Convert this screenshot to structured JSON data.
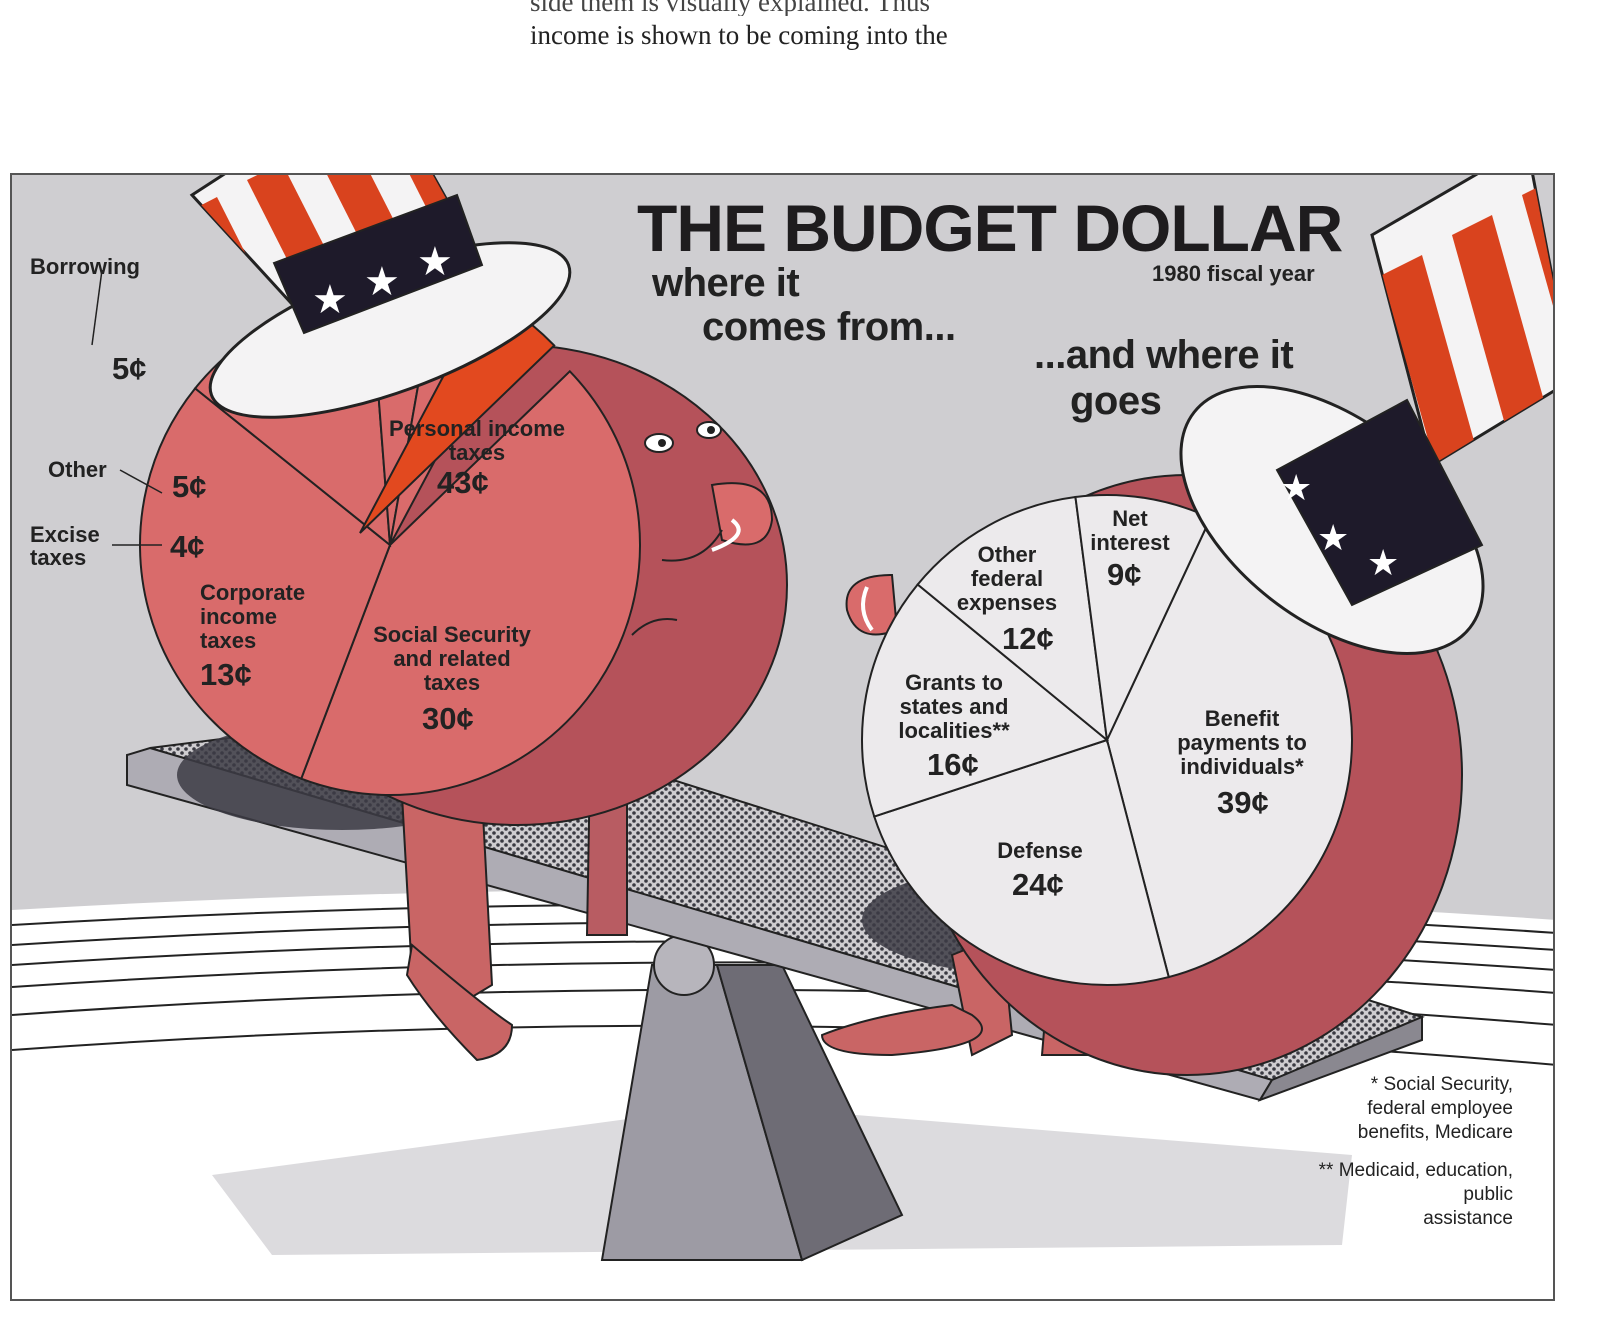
{
  "page_text": {
    "line_partial": "side them is visually explained. Thus",
    "line_full": "income is shown to be coming into the"
  },
  "colors": {
    "income_pie": "#d96b6b",
    "income_pie_dark": "#b5525a",
    "borrowing": "#e2491f",
    "outlay_pie": "#eceaec",
    "hat_red": "#d9431e",
    "hat_navy": "#1e1a2a",
    "background": "#cfced1"
  },
  "chart_data": [
    {
      "type": "pie",
      "title": "THE BUDGET DOLLAR",
      "subtitle": "1980 fiscal year",
      "heading": "where it comes from...",
      "heading_lines": [
        "where it",
        "comes from..."
      ],
      "unit": "¢",
      "slices": [
        {
          "label": "Personal income taxes",
          "label_lines": [
            "Personal income",
            "taxes"
          ],
          "value": 43,
          "value_text": "43¢"
        },
        {
          "label": "Social Security and related taxes",
          "label_lines": [
            "Social Security",
            "and related",
            "taxes"
          ],
          "value": 30,
          "value_text": "30¢"
        },
        {
          "label": "Corporate income taxes",
          "label_lines": [
            "Corporate",
            "income",
            "taxes"
          ],
          "value": 13,
          "value_text": "13¢"
        },
        {
          "label": "Excise taxes",
          "label_lines": [
            "Excise",
            "taxes"
          ],
          "value": 4,
          "value_text": "4¢"
        },
        {
          "label": "Other",
          "label_lines": [
            "Other"
          ],
          "value": 5,
          "value_text": "5¢"
        },
        {
          "label": "Borrowing",
          "label_lines": [
            "Borrowing"
          ],
          "value": 5,
          "value_text": "5¢",
          "exploded": true
        }
      ]
    },
    {
      "type": "pie",
      "heading": "...and where it goes",
      "heading_lines": [
        "...and where it",
        "goes"
      ],
      "unit": "¢",
      "slices": [
        {
          "label": "Benefit payments to individuals*",
          "label_lines": [
            "Benefit",
            "payments to",
            "individuals*"
          ],
          "value": 39,
          "value_text": "39¢"
        },
        {
          "label": "Defense",
          "label_lines": [
            "Defense"
          ],
          "value": 24,
          "value_text": "24¢"
        },
        {
          "label": "Grants to states and localities**",
          "label_lines": [
            "Grants to",
            "states and",
            "localities**"
          ],
          "value": 16,
          "value_text": "16¢"
        },
        {
          "label": "Other federal expenses",
          "label_lines": [
            "Other",
            "federal",
            "expenses"
          ],
          "value": 12,
          "value_text": "12¢"
        },
        {
          "label": "Net interest",
          "label_lines": [
            "Net",
            "interest"
          ],
          "value": 9,
          "value_text": "9¢"
        }
      ],
      "footnotes": [
        {
          "lines": [
            "* Social Security,",
            "federal employee",
            "benefits, Medicare"
          ]
        },
        {
          "lines": [
            "** Medicaid, education,",
            "public",
            "assistance"
          ]
        }
      ]
    }
  ]
}
